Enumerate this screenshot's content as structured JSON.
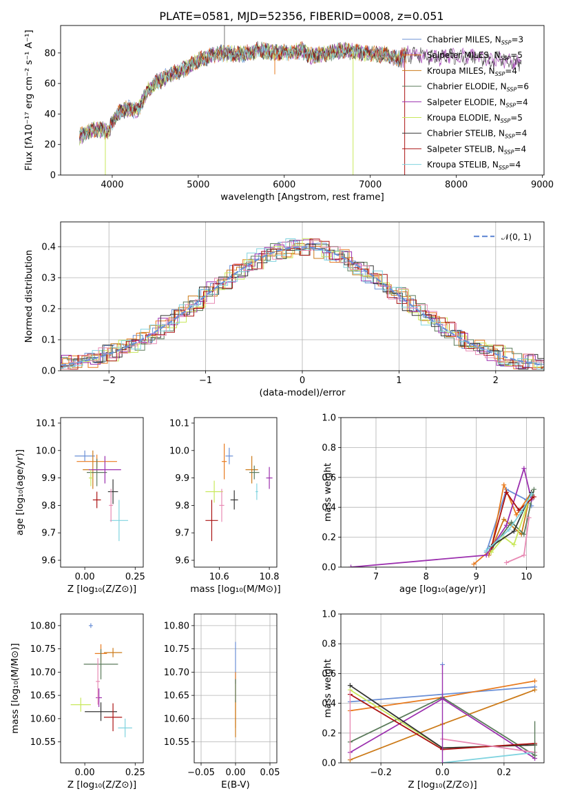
{
  "palette": [
    "#6a8fd6",
    "#e87a1e",
    "#cc7a18",
    "#5a7a5a",
    "#9b2fae",
    "#c8e85a",
    "#333333",
    "#aa1111",
    "#7fd3df",
    "#e88ab4"
  ],
  "chart_data": [
    {
      "id": "spectrum",
      "type": "line",
      "title": "PLATE=0581, MJD=52356, FIBERID=0008, z=0.051",
      "xlabel": "wavelength [Angstrom, rest frame]",
      "ylabel": "Flux [fλ10⁻¹⁷ erg cm⁻² s⁻¹ A⁻¹]",
      "xlim": [
        3400,
        9020
      ],
      "ylim": [
        0,
        98
      ],
      "xticks": [
        4000,
        5000,
        6000,
        7000,
        8000,
        9000
      ],
      "yticks": [
        0,
        20,
        40,
        60,
        80
      ],
      "grid": false,
      "legend": "top-right",
      "series": [
        {
          "name": "Chabrier MILES, N_SSP=3"
        },
        {
          "name": "Salpeter MILES, N_SSP=5"
        },
        {
          "name": "Kroupa MILES, N_SSP=4"
        },
        {
          "name": "Chabrier ELODIE, N_SSP=6"
        },
        {
          "name": "Salpeter ELODIE, N_SSP=4"
        },
        {
          "name": "Kroupa ELODIE, N_SSP=5"
        },
        {
          "name": "Chabrier STELIB, N_SSP=4"
        },
        {
          "name": "Salpeter STELIB, N_SSP=4"
        },
        {
          "name": "Kroupa STELIB, N_SSP=4"
        }
      ],
      "continuum": {
        "x": [
          3620,
          3700,
          3800,
          3900,
          3950,
          4000,
          4100,
          4200,
          4300,
          4400,
          4500,
          4600,
          4700,
          4800,
          4900,
          5000,
          5100,
          5200,
          5300,
          5400,
          5500,
          5600,
          5700,
          5800,
          5900,
          6000,
          6100,
          6200,
          6300,
          6400,
          6500,
          6600,
          6700,
          6800,
          6900,
          7000,
          7100,
          7200,
          7300,
          7400,
          7500,
          7600,
          7700,
          7800,
          7900,
          8000,
          8100,
          8200,
          8300,
          8400,
          8500,
          8600,
          8700,
          8760
        ],
        "y": [
          25,
          28,
          30,
          30,
          27,
          35,
          42,
          44,
          42,
          55,
          60,
          63,
          67,
          68,
          72,
          75,
          77,
          79,
          80,
          79,
          79,
          80,
          82,
          81,
          80,
          81,
          80,
          82,
          78,
          79,
          80,
          81,
          82,
          81,
          80,
          80,
          79,
          79,
          76,
          78,
          80,
          78,
          77,
          77,
          78,
          78,
          77,
          78,
          77,
          74,
          76,
          75,
          73,
          74
        ]
      },
      "absorption_dips": [
        {
          "x": 3920,
          "y": 0
        },
        {
          "x": 5890,
          "y": 66
        },
        {
          "x": 6800,
          "y": 0
        },
        {
          "x": 7400,
          "y": 0
        }
      ]
    },
    {
      "id": "residuals",
      "type": "line",
      "xlabel": "(data-model)/error",
      "ylabel": "Normed distribution",
      "xlim": [
        -2.5,
        2.5
      ],
      "ylim": [
        0,
        0.48
      ],
      "xticks": [
        -2,
        -1,
        0,
        1,
        2
      ],
      "yticks": [
        0.0,
        0.1,
        0.2,
        0.3,
        0.4
      ],
      "grid": true,
      "legend": "top-right",
      "reference": {
        "name": "𝒩(0, 1)",
        "mean": 0,
        "sigma": 1
      },
      "bin_width": 0.1,
      "series_offsets": [
        0.0,
        0.035,
        -0.03,
        0.02,
        -0.04,
        0.05,
        -0.015,
        0.028,
        -0.022,
        0.042
      ]
    },
    {
      "id": "age-vs-z",
      "type": "scatter",
      "xlabel": "Z [log₁₀(Z/Z⊙)]",
      "ylabel": "age  [log₁₀(age/yr)]",
      "xlim": [
        -0.12,
        0.29
      ],
      "ylim": [
        9.575,
        10.12
      ],
      "xticks": [
        0.0,
        0.25
      ],
      "xtick_labels": [
        "0.00",
        "0.25"
      ],
      "yticks": [
        9.6,
        9.7,
        9.8,
        9.9,
        10.0,
        10.1
      ],
      "grid": false,
      "points": [
        {
          "x": 0.0,
          "y": 9.98,
          "xerr": 0.1,
          "yerr": 0.04
        },
        {
          "x": 0.06,
          "y": 9.96,
          "xerr": 0.2,
          "yerr": 0.05
        },
        {
          "x": 0.04,
          "y": 9.93,
          "xerr": 0.1,
          "yerr": 0.14
        },
        {
          "x": 0.06,
          "y": 9.92,
          "xerr": 0.1,
          "yerr": 0.1
        },
        {
          "x": 0.1,
          "y": 9.93,
          "xerr": 0.16,
          "yerr": 0.1
        },
        {
          "x": 0.03,
          "y": 9.9,
          "xerr": 0.02,
          "yerr": 0.06
        },
        {
          "x": 0.14,
          "y": 9.85,
          "xerr": 0.05,
          "yerr": 0.09
        },
        {
          "x": 0.06,
          "y": 9.82,
          "xerr": 0.04,
          "yerr": 0.06
        },
        {
          "x": 0.17,
          "y": 9.745,
          "xerr": 0.09,
          "yerr": 0.15
        },
        {
          "x": 0.13,
          "y": 9.8,
          "xerr": 0.02,
          "yerr": 0.12
        }
      ]
    },
    {
      "id": "age-vs-mass",
      "type": "scatter",
      "xlabel": "mass [log₁₀(M/M⊙)]",
      "ylabel": "",
      "xlim": [
        10.5,
        10.83
      ],
      "ylim": [
        9.575,
        10.12
      ],
      "xticks": [
        10.6,
        10.8
      ],
      "xtick_labels": [
        "10.6",
        "10.8"
      ],
      "yticks": [
        9.6,
        9.7,
        9.8,
        9.9,
        10.0,
        10.1
      ],
      "grid": false,
      "points": [
        {
          "x": 10.64,
          "y": 9.98,
          "xerr": 0.03,
          "yerr": 0.06
        },
        {
          "x": 10.62,
          "y": 9.96,
          "xerr": 0.02,
          "yerr": 0.13
        },
        {
          "x": 10.73,
          "y": 9.93,
          "xerr": 0.05,
          "yerr": 0.1
        },
        {
          "x": 10.74,
          "y": 9.92,
          "xerr": 0.04,
          "yerr": 0.05
        },
        {
          "x": 10.8,
          "y": 9.9,
          "xerr": 0.025,
          "yerr": 0.08
        },
        {
          "x": 10.58,
          "y": 9.85,
          "xerr": 0.07,
          "yerr": 0.08
        },
        {
          "x": 10.66,
          "y": 9.82,
          "xerr": 0.03,
          "yerr": 0.07
        },
        {
          "x": 10.57,
          "y": 9.745,
          "xerr": 0.05,
          "yerr": 0.15
        },
        {
          "x": 10.75,
          "y": 9.85,
          "xerr": 0.01,
          "yerr": 0.06
        },
        {
          "x": 10.61,
          "y": 9.8,
          "xerr": 0.02,
          "yerr": 0.12
        }
      ]
    },
    {
      "id": "weight-vs-age",
      "type": "line",
      "xlabel": "age  [log₁₀(age/yr)]",
      "ylabel": "mass weight",
      "xlim": [
        6.3,
        10.35
      ],
      "ylim": [
        0,
        1
      ],
      "xticks": [
        7,
        8,
        9,
        10
      ],
      "yticks": [
        0.0,
        0.2,
        0.4,
        0.6,
        0.8,
        1.0
      ],
      "grid": true,
      "series": [
        {
          "x": [
            9.2,
            9.6,
            10.0,
            10.1
          ],
          "y": [
            0.1,
            0.52,
            0.45,
            0.41
          ]
        },
        {
          "x": [
            8.95,
            9.3,
            9.55,
            9.8,
            10.1
          ],
          "y": [
            0.02,
            0.12,
            0.55,
            0.35,
            0.5
          ]
        },
        {
          "x": [
            9.25,
            9.55,
            9.9,
            10.05
          ],
          "y": [
            0.08,
            0.32,
            0.22,
            0.45
          ]
        },
        {
          "x": [
            9.3,
            9.7,
            9.95,
            10.15
          ],
          "y": [
            0.12,
            0.3,
            0.22,
            0.52
          ]
        },
        {
          "x": [
            6.5,
            9.2,
            9.6,
            9.95,
            10.1
          ],
          "y": [
            0.0,
            0.08,
            0.28,
            0.66,
            0.45
          ]
        },
        {
          "x": [
            9.3,
            9.55,
            9.75,
            10.05
          ],
          "y": [
            0.1,
            0.2,
            0.15,
            0.45
          ]
        },
        {
          "x": [
            9.3,
            9.75,
            10.1
          ],
          "y": [
            0.14,
            0.24,
            0.5
          ]
        },
        {
          "x": [
            9.3,
            9.6,
            9.85,
            10.15
          ],
          "y": [
            0.13,
            0.5,
            0.38,
            0.47
          ]
        },
        {
          "x": [
            9.2,
            9.65,
            9.9,
            10.1
          ],
          "y": [
            0.11,
            0.25,
            0.37,
            0.49
          ]
        },
        {
          "x": [
            9.6,
            9.95,
            10.05
          ],
          "y": [
            0.03,
            0.08,
            0.33
          ]
        }
      ]
    },
    {
      "id": "mass-vs-z",
      "type": "scatter",
      "xlabel": "Z [log₁₀(Z/Z⊙)]",
      "ylabel": "mass [log₁₀(M/M⊙)]",
      "xlim": [
        -0.12,
        0.29
      ],
      "ylim": [
        10.505,
        10.825
      ],
      "xticks": [
        0.0,
        0.25
      ],
      "xtick_labels": [
        "0.00",
        "0.25"
      ],
      "yticks": [
        10.55,
        10.6,
        10.65,
        10.7,
        10.75,
        10.8
      ],
      "grid": false,
      "points": [
        {
          "x": 0.03,
          "y": 10.8,
          "xerr": 0.02,
          "yerr": 0.01
        },
        {
          "x": 0.08,
          "y": 10.74,
          "xerr": 0.06,
          "yerr": 0.04
        },
        {
          "x": 0.14,
          "y": 10.742,
          "xerr": 0.09,
          "yerr": 0.02
        },
        {
          "x": 0.08,
          "y": 10.717,
          "xerr": 0.17,
          "yerr": 0.065
        },
        {
          "x": 0.07,
          "y": 10.645,
          "xerr": 0.03,
          "yerr": 0.04
        },
        {
          "x": -0.02,
          "y": 10.63,
          "xerr": 0.1,
          "yerr": 0.03
        },
        {
          "x": 0.08,
          "y": 10.615,
          "xerr": 0.16,
          "yerr": 0.04
        },
        {
          "x": 0.14,
          "y": 10.603,
          "xerr": 0.09,
          "yerr": 0.06
        },
        {
          "x": 0.2,
          "y": 10.58,
          "xerr": 0.07,
          "yerr": 0.04
        },
        {
          "x": 0.065,
          "y": 10.68,
          "xerr": 0.02,
          "yerr": 0.1
        }
      ]
    },
    {
      "id": "mass-vs-ebv",
      "type": "scatter",
      "xlabel": "E(B-V)",
      "ylabel": "",
      "xlim": [
        -0.06,
        0.06
      ],
      "ylim": [
        10.505,
        10.825
      ],
      "xticks": [
        -0.05,
        0.0,
        0.05
      ],
      "xtick_labels": [
        "−0.05",
        "0.00",
        "0.05"
      ],
      "yticks": [
        10.55,
        10.6,
        10.65,
        10.7,
        10.75,
        10.8
      ],
      "grid": true,
      "points": [
        {
          "x": 0.0,
          "y": 10.72,
          "xerr": 0,
          "yerr": 0.09
        },
        {
          "x": 0.0,
          "y": 10.64,
          "xerr": 0,
          "yerr": 0.12
        },
        {
          "x": 0.0,
          "y": 10.6,
          "xerr": 0,
          "yerr": 0.08
        },
        {
          "x": 0.0,
          "y": 10.66,
          "xerr": 0,
          "yerr": 0.05
        }
      ]
    },
    {
      "id": "weight-vs-z",
      "type": "line",
      "xlabel": "Z [log₁₀(Z/Z⊙)]",
      "ylabel": "mass weight",
      "xlim": [
        -0.33,
        0.33
      ],
      "ylim": [
        0,
        1
      ],
      "xticks": [
        -0.2,
        0.0,
        0.2
      ],
      "xtick_labels": [
        "−0.2",
        "0.0",
        "0.2"
      ],
      "yticks": [
        0.0,
        0.2,
        0.4,
        0.6,
        0.8,
        1.0
      ],
      "grid": true,
      "series": [
        {
          "x": [
            -0.3,
            0.0,
            0.3
          ],
          "y": [
            0.41,
            0.46,
            0.51
          ]
        },
        {
          "x": [
            -0.3,
            0.0,
            0.3
          ],
          "y": [
            0.35,
            0.44,
            0.55
          ]
        },
        {
          "x": [
            -0.3,
            0.0,
            0.3
          ],
          "y": [
            0.02,
            0.26,
            0.49
          ]
        },
        {
          "x": [
            -0.3,
            0.0,
            0.3
          ],
          "y": [
            0.14,
            0.44,
            0.05
          ]
        },
        {
          "x": [
            -0.3,
            0.0,
            0.3
          ],
          "y": [
            0.07,
            0.43,
            0.03
          ]
        },
        {
          "x": [
            -0.3,
            0.0,
            0.3
          ],
          "y": [
            0.49,
            0.1,
            0.12
          ]
        },
        {
          "x": [
            -0.3,
            0.0,
            0.3
          ],
          "y": [
            0.52,
            0.1,
            0.12
          ]
        },
        {
          "x": [
            -0.3,
            0.0,
            0.3
          ],
          "y": [
            0.46,
            0.09,
            0.13
          ]
        },
        {
          "x": [
            0.0,
            0.3
          ],
          "y": [
            0.0,
            0.07
          ]
        },
        {
          "x": [
            0.0,
            0.3
          ],
          "y": [
            0.16,
            0.07
          ]
        },
        {
          "x": [
            0.0
          ],
          "y": [
            0.66
          ]
        }
      ]
    }
  ]
}
